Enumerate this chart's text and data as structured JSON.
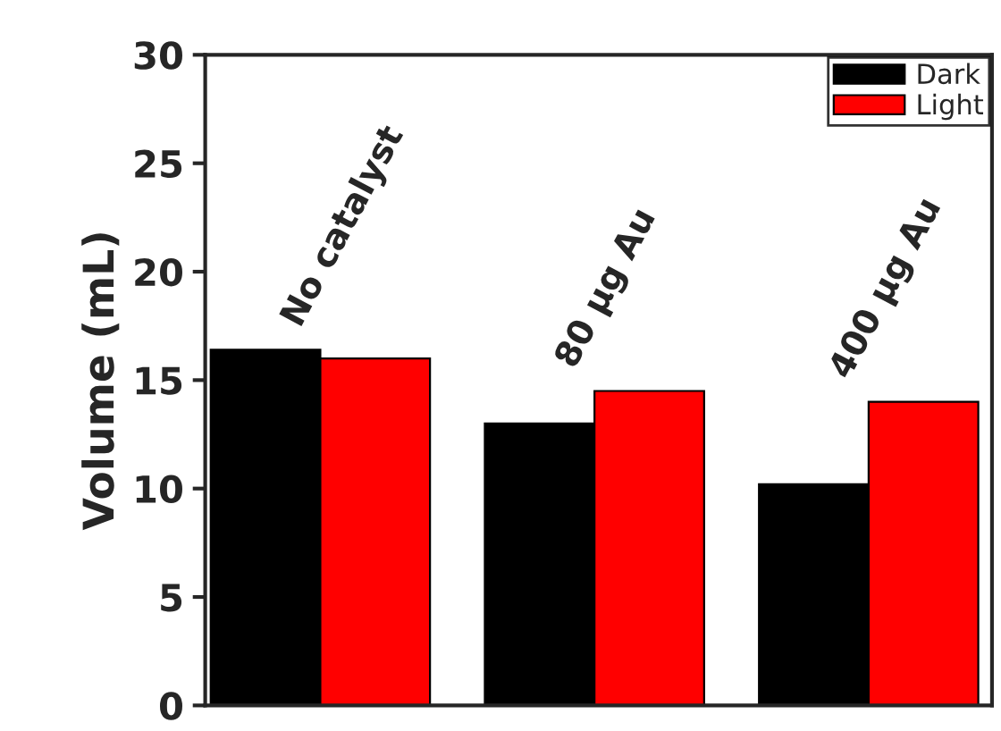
{
  "chart_data": {
    "type": "bar",
    "ylabel": "Volume (mL)",
    "categories": [
      "No catalyst",
      "80 μg Au",
      "400 μg Au"
    ],
    "series": [
      {
        "name": "Dark",
        "color": "#000000",
        "values": [
          16.4,
          13.0,
          10.2
        ]
      },
      {
        "name": "Light",
        "color": "#ff0000",
        "values": [
          16.0,
          14.5,
          14.0
        ]
      }
    ],
    "ylim": [
      0,
      30
    ],
    "yticks": [
      0,
      5,
      10,
      15,
      20,
      25,
      30
    ],
    "legend": "top right",
    "grid": false
  }
}
